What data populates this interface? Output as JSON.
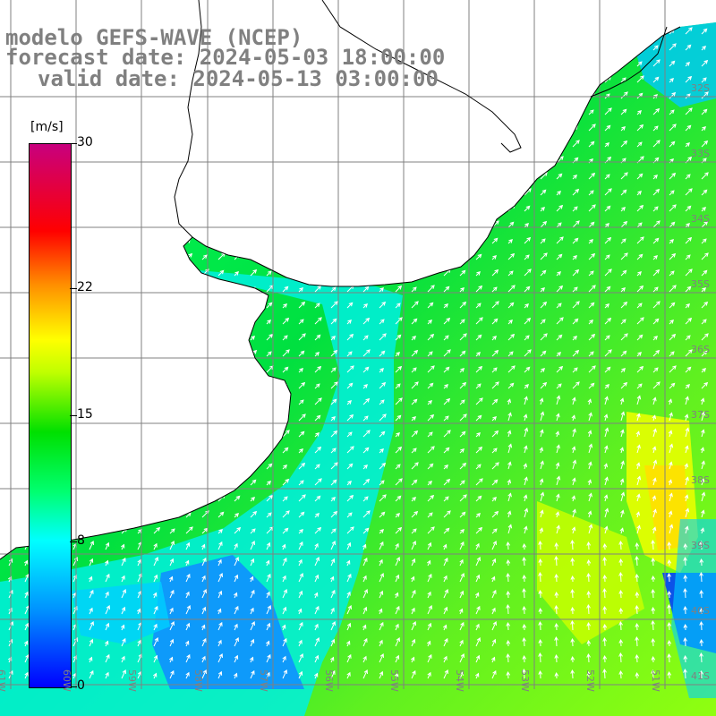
{
  "title": {
    "line1": "modelo GEFS-WAVE (NCEP)",
    "line2": "forecast date: 2024-05-03 18:00:00",
    "line3": "valid date: 2024-05-13 03:00:00"
  },
  "colorbar": {
    "units": "[m/s]",
    "ticks": [
      {
        "label": "30",
        "value": 30
      },
      {
        "label": "22",
        "value": 22
      },
      {
        "label": "15",
        "value": 15
      },
      {
        "label": "8",
        "value": 8
      },
      {
        "label": "0",
        "value": 0
      }
    ],
    "colors": [
      "#0000ff",
      "#0090ff",
      "#00ffff",
      "#00ff60",
      "#00e000",
      "#80ff00",
      "#ffff00",
      "#ff9000",
      "#ff0000",
      "#d0007a"
    ]
  },
  "grid": {
    "lat_labels": [
      "32S",
      "33S",
      "34S",
      "35S",
      "36S",
      "37S",
      "38S",
      "39S",
      "40S",
      "41S"
    ],
    "lon_labels": [
      "61W",
      "60W",
      "59W",
      "58W",
      "57W",
      "56W",
      "55W",
      "54W",
      "53W",
      "52W",
      "51W"
    ]
  },
  "colors": {
    "land": "#ffffff",
    "grid_line": "#808080",
    "coast": "#000000",
    "label": "#808080"
  }
}
